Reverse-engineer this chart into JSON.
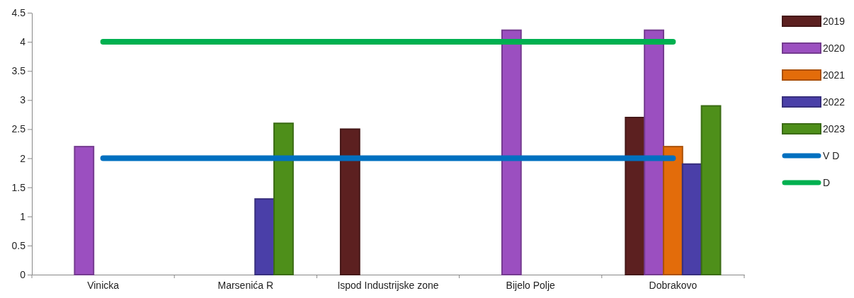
{
  "chart_data": {
    "type": "bar",
    "categories": [
      "Vinicka",
      "Marsenića R",
      "Ispod Industrijske zone",
      "Bijelo Polje",
      "Dobrakovo"
    ],
    "series": [
      {
        "name": "2019",
        "color": "#5c2020",
        "values": [
          null,
          null,
          2.5,
          null,
          2.7
        ]
      },
      {
        "name": "2020",
        "color": "#9b4fc0",
        "values": [
          2.2,
          null,
          null,
          4.2,
          4.2
        ]
      },
      {
        "name": "2021",
        "color": "#e36c0a",
        "values": [
          null,
          null,
          null,
          null,
          2.2
        ]
      },
      {
        "name": "2022",
        "color": "#4a3fa8",
        "values": [
          null,
          1.3,
          null,
          null,
          1.9
        ]
      },
      {
        "name": "2023",
        "color": "#4e8f1a",
        "values": [
          null,
          2.6,
          null,
          null,
          2.9
        ]
      },
      {
        "name": "V D",
        "type": "line",
        "color": "#0070c0",
        "values": [
          2,
          2,
          2,
          2,
          2
        ]
      },
      {
        "name": "D",
        "type": "line",
        "color": "#00b050",
        "values": [
          4,
          4,
          4,
          4,
          4
        ]
      }
    ],
    "ylim": [
      0,
      4.5
    ],
    "yticks": [
      0,
      0.5,
      1,
      1.5,
      2,
      2.5,
      3,
      3.5,
      4,
      4.5
    ],
    "grid": false,
    "legend": "right",
    "marker": "none",
    "line_style": "solid"
  }
}
